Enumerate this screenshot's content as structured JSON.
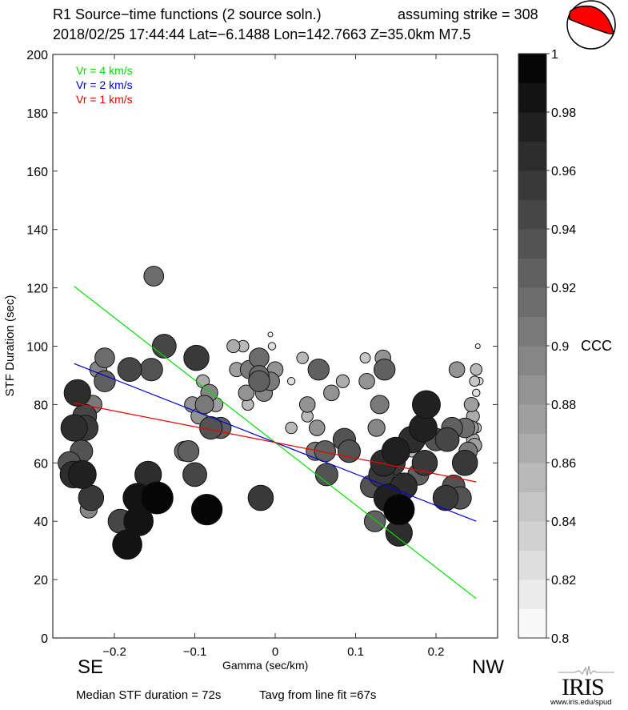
{
  "header": {
    "title": "R1 Source−time functions (2 source soln.)",
    "strike_text": "assuming strike = 308",
    "event_line": "2018/02/25 17:44:44  Lat=−6.1488 Lon=142.7663  Z=35.0km  M7.5"
  },
  "beachball": {
    "fill_color": "#ff0000",
    "icon": "focal-mechanism-beachball-icon"
  },
  "direction_labels": {
    "left": "SE",
    "right": "NW"
  },
  "footer": {
    "median": "Median STF duration = 72s",
    "tavg": "Tavg from line fit =67s"
  },
  "logo": {
    "name": "IRIS",
    "url_text": "www.iris.edu/spud"
  },
  "chart_data": {
    "type": "scatter",
    "title": "R1 Source−time functions (2 source soln.)",
    "xlabel": "Gamma (sec/km)",
    "ylabel": "STF Duration (sec)",
    "xlim": [
      -0.27,
      0.275
    ],
    "ylim": [
      0,
      200
    ],
    "xticks": [
      -0.2,
      -0.1,
      0,
      0.1,
      0.2
    ],
    "xtick_labels": [
      "−0.2",
      "−0.1",
      "0",
      "0.1",
      "0.2"
    ],
    "yticks": [
      0,
      20,
      40,
      60,
      80,
      100,
      120,
      140,
      160,
      180,
      200
    ],
    "ytick_labels": [
      "0",
      "20",
      "40",
      "60",
      "80",
      "100",
      "120",
      "140",
      "160",
      "180",
      "200"
    ],
    "grid": false,
    "legend": {
      "placement": "top-left",
      "entries": [
        {
          "label": "Vr = 4 km/s",
          "color": "#00dd00"
        },
        {
          "label": "Vr = 2 km/s",
          "color": "#0000dd"
        },
        {
          "label": "Vr = 1 km/s",
          "color": "#ee0000"
        }
      ]
    },
    "lines": [
      {
        "name": "Vr = 4 km/s",
        "color": "#00dd00",
        "x": [
          -0.25,
          0.25
        ],
        "y": [
          120.5,
          13.5
        ]
      },
      {
        "name": "Vr = 2 km/s",
        "color": "#0000dd",
        "x": [
          -0.25,
          0.25
        ],
        "y": [
          94,
          40
        ]
      },
      {
        "name": "Vr = 1 km/s",
        "color": "#ee0000",
        "x": [
          -0.25,
          0.25
        ],
        "y": [
          80.5,
          53.5
        ]
      }
    ],
    "colorbar": {
      "label": "CCC",
      "range": [
        0.8,
        1.0
      ],
      "ticks": [
        0.8,
        0.82,
        0.84,
        0.86,
        0.88,
        0.9,
        0.92,
        0.94,
        0.96,
        0.98,
        1
      ],
      "tick_labels": [
        "0.8",
        "0.82",
        "0.84",
        "0.86",
        "0.88",
        "0.9",
        "0.92",
        "0.94",
        "0.96",
        "0.98",
        "1"
      ],
      "bands": 20
    },
    "points": [
      [
        -0.151,
        124,
        0.91
      ],
      [
        -0.138,
        100,
        0.94
      ],
      [
        -0.098,
        96,
        0.95
      ],
      [
        -0.212,
        96,
        0.91
      ],
      [
        -0.181,
        92,
        0.94
      ],
      [
        -0.154,
        92,
        0.93
      ],
      [
        -0.22,
        92,
        0.89
      ],
      [
        -0.212,
        88,
        0.92
      ],
      [
        -0.246,
        84,
        0.96
      ],
      [
        -0.237,
        76,
        0.94
      ],
      [
        -0.236,
        72,
        0.95
      ],
      [
        -0.25,
        72,
        0.96
      ],
      [
        -0.227,
        80,
        0.9
      ],
      [
        -0.241,
        64,
        0.93
      ],
      [
        -0.256,
        60,
        0.93
      ],
      [
        -0.251,
        56,
        0.96
      ],
      [
        -0.24,
        56,
        0.97
      ],
      [
        -0.229,
        48,
        0.95
      ],
      [
        -0.232,
        44,
        0.89
      ],
      [
        -0.19,
        40,
        0.93
      ],
      [
        -0.17,
        40,
        0.98
      ],
      [
        -0.147,
        48,
        1.0
      ],
      [
        -0.171,
        48,
        0.98
      ],
      [
        -0.158,
        56,
        0.96
      ],
      [
        -0.184,
        32,
        0.98
      ],
      [
        -0.193,
        40,
        0.94
      ],
      [
        -0.085,
        44,
        0.99
      ],
      [
        -0.018,
        48,
        0.95
      ],
      [
        -0.108,
        64,
        0.92
      ],
      [
        -0.1,
        56,
        0.94
      ],
      [
        -0.113,
        64,
        0.91
      ],
      [
        -0.08,
        72,
        0.93
      ],
      [
        -0.068,
        72,
        0.92
      ],
      [
        -0.072,
        72,
        0.89
      ],
      [
        -0.103,
        80,
        0.88
      ],
      [
        -0.088,
        80,
        0.9
      ],
      [
        -0.082,
        84,
        0.89
      ],
      [
        -0.09,
        88,
        0.86
      ],
      [
        -0.095,
        76,
        0.88
      ],
      [
        -0.074,
        80,
        0.87
      ],
      [
        -0.048,
        92,
        0.87
      ],
      [
        -0.052,
        100,
        0.86
      ],
      [
        -0.034,
        80,
        0.85
      ],
      [
        -0.036,
        84,
        0.88
      ],
      [
        -0.02,
        96,
        0.91
      ],
      [
        -0.006,
        88,
        0.9
      ],
      [
        -0.02,
        88,
        0.92
      ],
      [
        -0.02,
        90,
        0.91
      ],
      [
        -0.014,
        84,
        0.89
      ],
      [
        -0.032,
        92,
        0.9
      ],
      [
        0,
        92,
        0.88
      ],
      [
        -0.02,
        88,
        0.86
      ],
      [
        -0.04,
        100,
        0.85
      ],
      [
        -0.006,
        104,
        0.8
      ],
      [
        -0.004,
        100,
        0.82
      ],
      [
        0.02,
        88,
        0.82
      ],
      [
        0.034,
        96,
        0.85
      ],
      [
        0.04,
        80,
        0.88
      ],
      [
        0.04,
        76,
        0.85
      ],
      [
        0.052,
        72,
        0.88
      ],
      [
        0.054,
        92,
        0.92
      ],
      [
        0.054,
        92,
        0.87
      ],
      [
        0.07,
        84,
        0.88
      ],
      [
        0.084,
        88,
        0.86
      ],
      [
        0.02,
        72,
        0.85
      ],
      [
        0.05,
        64,
        0.9
      ],
      [
        0.062,
        64,
        0.92
      ],
      [
        0.064,
        56,
        0.93
      ],
      [
        0.086,
        68,
        0.93
      ],
      [
        0.092,
        64,
        0.93
      ],
      [
        0.112,
        96,
        0.84
      ],
      [
        0.114,
        88,
        0.88
      ],
      [
        0.13,
        80,
        0.9
      ],
      [
        0.136,
        92,
        0.92
      ],
      [
        0.134,
        96,
        0.88
      ],
      [
        0.126,
        72,
        0.89
      ],
      [
        0.12,
        52,
        0.93
      ],
      [
        0.124,
        40,
        0.92
      ],
      [
        0.135,
        60,
        0.96
      ],
      [
        0.14,
        48,
        0.97
      ],
      [
        0.146,
        60,
        0.95
      ],
      [
        0.15,
        64,
        0.97
      ],
      [
        0.16,
        52,
        0.96
      ],
      [
        0.132,
        56,
        0.95
      ],
      [
        0.154,
        44,
        0.99
      ],
      [
        0.154,
        36,
        0.96
      ],
      [
        0.17,
        68,
        0.96
      ],
      [
        0.184,
        72,
        0.97
      ],
      [
        0.188,
        80,
        0.97
      ],
      [
        0.17,
        64,
        0.85
      ],
      [
        0.178,
        56,
        0.92
      ],
      [
        0.2,
        68,
        0.93
      ],
      [
        0.186,
        60,
        0.95
      ],
      [
        0.214,
        68,
        0.94
      ],
      [
        0.22,
        72,
        0.92
      ],
      [
        0.222,
        52,
        0.93
      ],
      [
        0.23,
        48,
        0.93
      ],
      [
        0.212,
        48,
        0.95
      ],
      [
        0.236,
        60,
        0.95
      ],
      [
        0.226,
        92,
        0.88
      ],
      [
        0.236,
        72,
        0.91
      ],
      [
        0.24,
        64,
        0.9
      ],
      [
        0.244,
        80,
        0.87
      ],
      [
        0.244,
        72,
        0.87
      ],
      [
        0.246,
        76,
        0.86
      ],
      [
        0.248,
        88,
        0.84
      ],
      [
        0.25,
        84,
        0.82
      ],
      [
        0.25,
        92,
        0.85
      ],
      [
        0.25,
        80,
        0.81
      ],
      [
        0.252,
        100,
        0.8
      ],
      [
        0.246,
        68,
        0.86
      ],
      [
        0.25,
        72,
        0.84
      ],
      [
        0.248,
        66,
        0.87
      ],
      [
        0.254,
        88,
        0.82
      ]
    ]
  }
}
